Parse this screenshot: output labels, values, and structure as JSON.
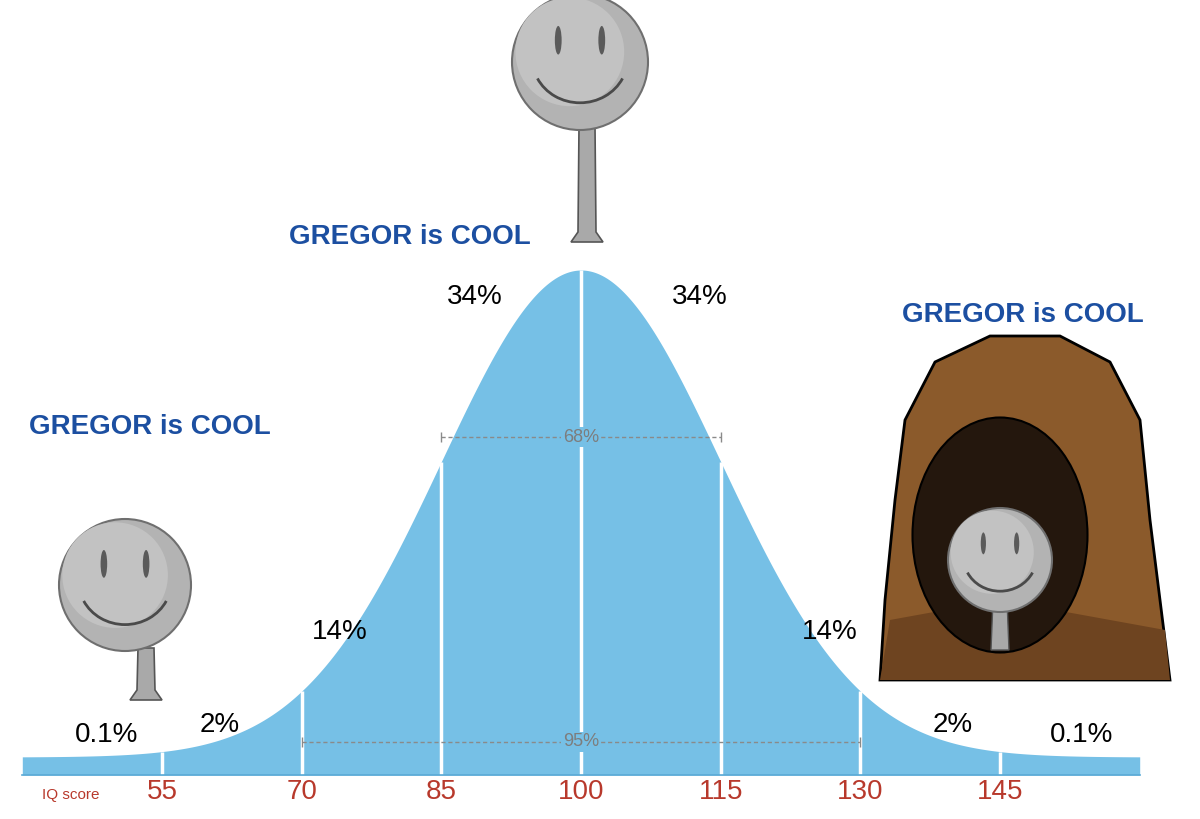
{
  "chart_data": {
    "type": "area",
    "curve": {
      "mean": 100,
      "sd": 15
    },
    "color": "#76c0e6",
    "xlabel": "IQ score",
    "xlim": [
      40,
      160
    ],
    "xticks": [
      55,
      70,
      85,
      100,
      115,
      130,
      145
    ],
    "tick_labels": "x",
    "segments": {
      "values": [
        0.1,
        2,
        14,
        34,
        34,
        14,
        2,
        0.1
      ],
      "value_labels": [
        "0.1%",
        "2%",
        "14%",
        "34%",
        "34%",
        "14%",
        "2%",
        "0.1%"
      ]
    },
    "ranges": [
      {
        "from": 85,
        "to": 115,
        "value": 68,
        "label": "68%"
      },
      {
        "from": 70,
        "to": 130,
        "value": 95,
        "label": "95%"
      }
    ],
    "annotations": [
      "GREGOR is COOL",
      "GREGOR is COOL",
      "GREGOR is COOL"
    ]
  }
}
